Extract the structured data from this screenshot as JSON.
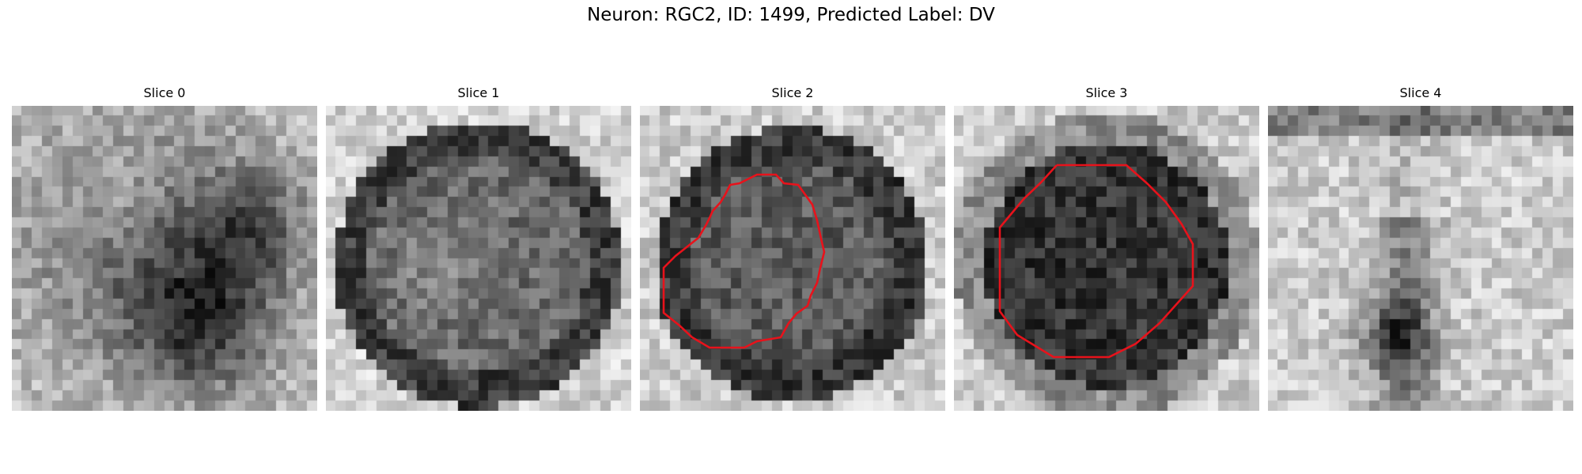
{
  "figure": {
    "title": "Neuron: RGC2, ID: 1499, Predicted Label: DV"
  },
  "slices": [
    {
      "label": "Slice 0",
      "has_contour": false,
      "pattern": "blob-lower-right-dark-rim"
    },
    {
      "label": "Slice 1",
      "has_contour": false,
      "pattern": "dark-ring-round-cell"
    },
    {
      "label": "Slice 2",
      "has_contour": true,
      "pattern": "dark-ring-center-medium"
    },
    {
      "label": "Slice 3",
      "has_contour": true,
      "pattern": "dark-filled-disk"
    },
    {
      "label": "Slice 4",
      "has_contour": false,
      "pattern": "light-with-vertical-dark-streak"
    }
  ],
  "colors": {
    "contour": "#e8121b",
    "background": "#ffffff"
  }
}
